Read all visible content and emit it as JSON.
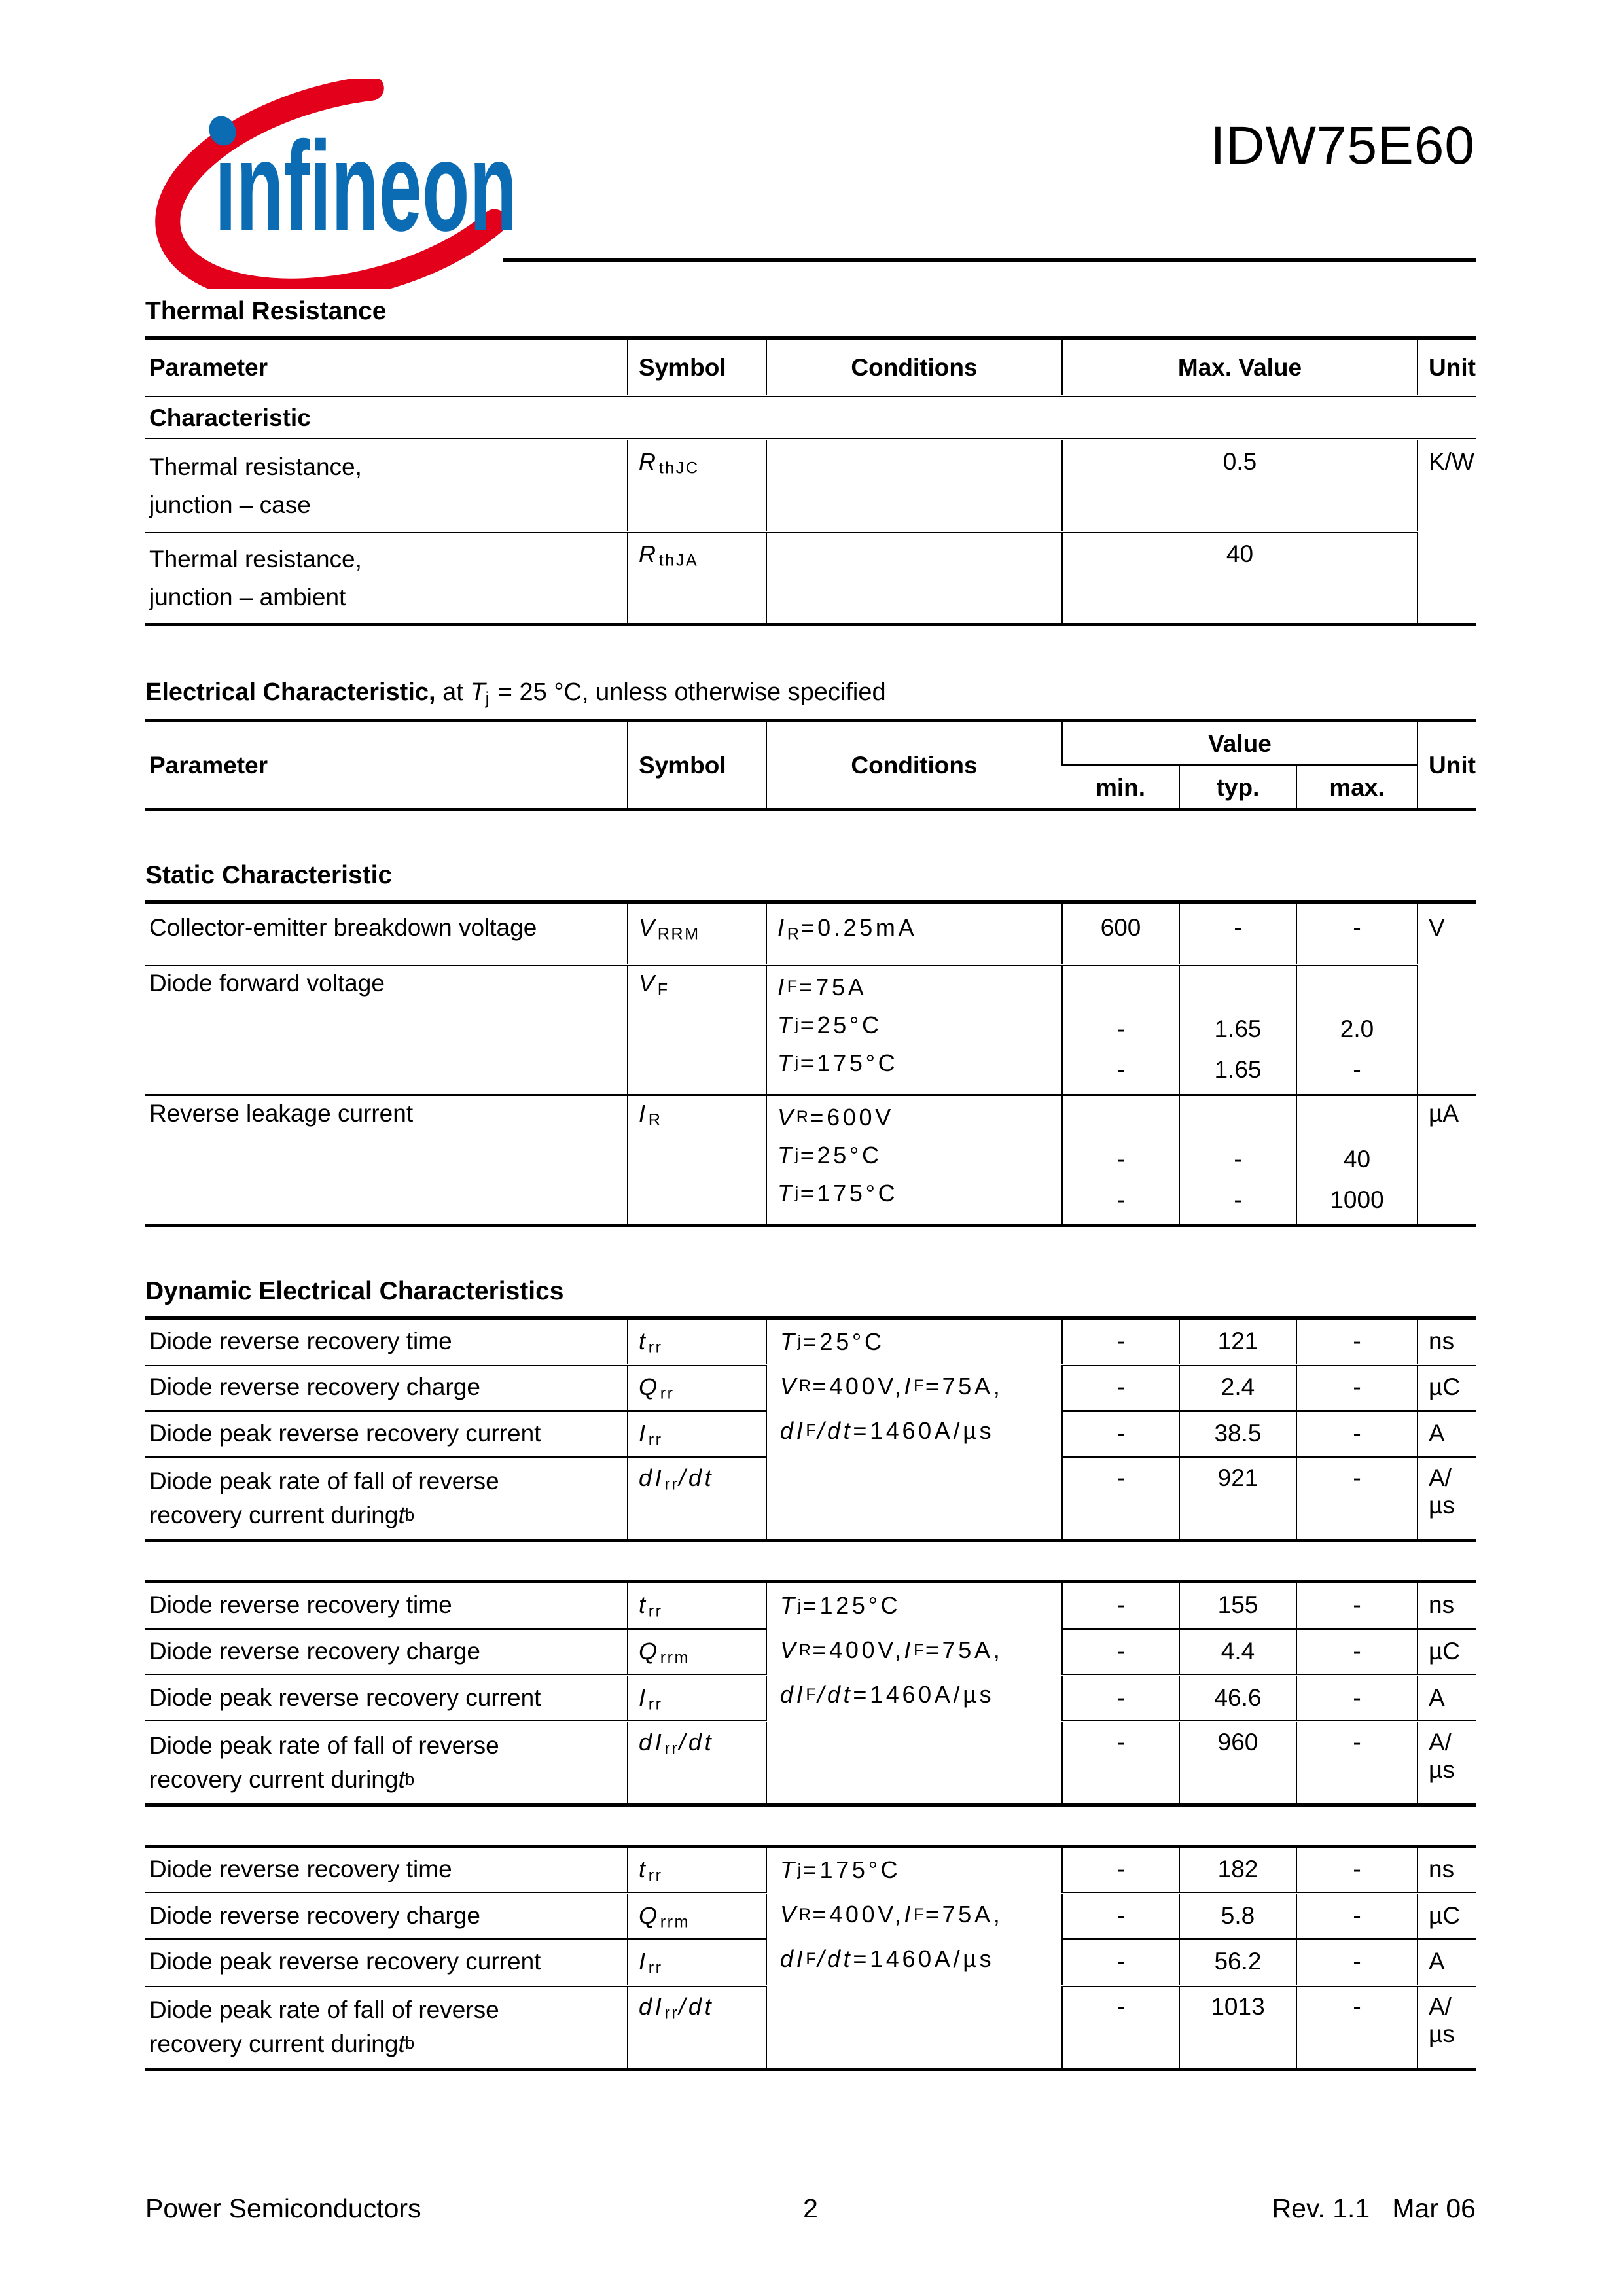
{
  "colors": {
    "logo_red": "#E2001A",
    "logo_blue": "#0B6CB4",
    "text": "#000000",
    "page_bg": "#ffffff"
  },
  "header": {
    "brand_text": "ınfineon",
    "product": "IDW75E60"
  },
  "thermal": {
    "heading": "Thermal Resistance",
    "col_parameter": "Parameter",
    "col_symbol": "Symbol",
    "col_conditions": "Conditions",
    "col_max_value": "Max. Value",
    "col_unit": "Unit",
    "section": "Characteristic",
    "rows": [
      {
        "p1": "Thermal resistance,",
        "p2": "junction – case",
        "symbol": [
          [
            "i",
            "R"
          ],
          [
            "s",
            "thJC"
          ]
        ],
        "max": "0.5",
        "unit": "K/W"
      },
      {
        "p1": "Thermal resistance,",
        "p2": "junction – ambient",
        "symbol": [
          [
            "i",
            "R"
          ],
          [
            "s",
            "thJA"
          ]
        ],
        "max": "40"
      }
    ]
  },
  "electrical": {
    "heading": [
      [
        "b",
        "Electrical Characteristic,"
      ],
      [
        "n",
        " at "
      ],
      [
        "i",
        "T"
      ],
      [
        "s",
        "j"
      ],
      [
        "n",
        " = 25 °C, unless otherwise specified"
      ]
    ],
    "col_parameter": "Parameter",
    "col_symbol": "Symbol",
    "col_conditions": "Conditions",
    "col_value": "Value",
    "col_min": "min.",
    "col_typ": "typ.",
    "col_max": "max.",
    "col_unit": "Unit"
  },
  "static": {
    "heading": "Static Characteristic",
    "rows": [
      {
        "parameter": "Collector-emitter breakdown voltage",
        "symbol": [
          [
            "i",
            "V"
          ],
          [
            "s",
            "RRM"
          ]
        ],
        "cond": [
          [
            "i",
            "I"
          ],
          [
            "s",
            "R"
          ],
          [
            "n",
            "=0.25mA"
          ]
        ],
        "min": "600",
        "typ": "-",
        "max": "-",
        "unit": "V"
      },
      {
        "parameter": "Diode forward voltage",
        "symbol": [
          [
            "i",
            "V"
          ],
          [
            "s",
            "F"
          ]
        ],
        "cond1": [
          [
            "i",
            "I"
          ],
          [
            "s",
            "F"
          ],
          [
            "n",
            "=75A"
          ]
        ],
        "cond2": [
          [
            "i",
            "T"
          ],
          [
            "s",
            "j"
          ],
          [
            "n",
            "=25°C"
          ]
        ],
        "cond3": [
          [
            "i",
            "T"
          ],
          [
            "s",
            "j"
          ],
          [
            "n",
            "=175°C"
          ]
        ],
        "min2": "-",
        "min3": "-",
        "typ2": "1.65",
        "typ3": "1.65",
        "max2": "2.0",
        "max3": "-"
      },
      {
        "parameter": "Reverse leakage current",
        "symbol": [
          [
            "i",
            "I"
          ],
          [
            "s",
            "R"
          ]
        ],
        "cond1": [
          [
            "i",
            "V"
          ],
          [
            "s",
            "R"
          ],
          [
            "n",
            "=600V"
          ]
        ],
        "cond2": [
          [
            "i",
            "T"
          ],
          [
            "s",
            "j"
          ],
          [
            "n",
            "=25°C"
          ]
        ],
        "cond3": [
          [
            "i",
            "T"
          ],
          [
            "s",
            "j"
          ],
          [
            "n",
            "=175°C"
          ]
        ],
        "min2": "-",
        "min3": "-",
        "typ2": "-",
        "typ3": "-",
        "max2": "40",
        "max3": "1000",
        "unit": "µA"
      }
    ]
  },
  "dynamic": {
    "heading": "Dynamic Electrical Characteristics",
    "tables": [
      {
        "cond1": [
          [
            "i",
            "T"
          ],
          [
            "s",
            "j"
          ],
          [
            "n",
            "=25°C"
          ]
        ],
        "cond2": [
          [
            "i",
            "V"
          ],
          [
            "s",
            "R"
          ],
          [
            "n",
            "=400V, "
          ],
          [
            "i",
            "I"
          ],
          [
            "s",
            "F"
          ],
          [
            "n",
            "=75A,"
          ]
        ],
        "cond3": [
          [
            "i",
            "dI"
          ],
          [
            "s",
            "F"
          ],
          [
            "i",
            "/dt"
          ],
          [
            "n",
            "=1460A/µs"
          ]
        ],
        "rows": [
          {
            "parameter": "Diode reverse recovery time",
            "symbol": [
              [
                "i",
                "t"
              ],
              [
                "s",
                "rr"
              ]
            ],
            "min": "-",
            "typ": "121",
            "max": "-",
            "unit": "ns"
          },
          {
            "parameter": "Diode reverse recovery charge",
            "symbol": [
              [
                "i",
                "Q"
              ],
              [
                "s",
                "rr"
              ]
            ],
            "min": "-",
            "typ": "2.4",
            "max": "-",
            "unit": "µC"
          },
          {
            "parameter": "Diode peak reverse recovery current",
            "symbol": [
              [
                "i",
                "I"
              ],
              [
                "s",
                "rr"
              ]
            ],
            "min": "-",
            "typ": "38.5",
            "max": "-",
            "unit": "A"
          },
          {
            "p1": "Diode peak rate of fall of reverse",
            "p2": [
              [
                "n",
                "recovery current during "
              ],
              [
                "i",
                "t"
              ],
              [
                "s",
                "b"
              ]
            ],
            "symbol": [
              [
                "i",
                "dI"
              ],
              [
                "s",
                "rr"
              ],
              [
                "i",
                "/dt"
              ]
            ],
            "min": "-",
            "typ": "921",
            "max": "-",
            "unit": "A/µs"
          }
        ]
      },
      {
        "cond1": [
          [
            "i",
            "T"
          ],
          [
            "s",
            "j"
          ],
          [
            "n",
            "=125°C"
          ]
        ],
        "cond2": [
          [
            "i",
            "V"
          ],
          [
            "s",
            "R"
          ],
          [
            "n",
            "=400V, "
          ],
          [
            "i",
            "I"
          ],
          [
            "s",
            "F"
          ],
          [
            "n",
            "=75A,"
          ]
        ],
        "cond3": [
          [
            "i",
            "dI"
          ],
          [
            "s",
            "F"
          ],
          [
            "i",
            "/dt"
          ],
          [
            "n",
            "=1460A/µs"
          ]
        ],
        "rows": [
          {
            "parameter": "Diode reverse recovery time",
            "symbol": [
              [
                "i",
                "t"
              ],
              [
                "s",
                "rr"
              ]
            ],
            "min": "-",
            "typ": "155",
            "max": "-",
            "unit": "ns"
          },
          {
            "parameter": "Diode reverse recovery charge",
            "symbol": [
              [
                "i",
                "Q"
              ],
              [
                "s",
                "rrm"
              ]
            ],
            "min": "-",
            "typ": "4.4",
            "max": "-",
            "unit": "µC"
          },
          {
            "parameter": "Diode peak reverse recovery current",
            "symbol": [
              [
                "i",
                "I"
              ],
              [
                "s",
                "rr"
              ]
            ],
            "min": "-",
            "typ": "46.6",
            "max": "-",
            "unit": "A"
          },
          {
            "p1": "Diode peak rate of fall of reverse",
            "p2": [
              [
                "n",
                "recovery current during "
              ],
              [
                "i",
                "t"
              ],
              [
                "s",
                "b"
              ]
            ],
            "symbol": [
              [
                "i",
                "dI"
              ],
              [
                "s",
                "rr"
              ],
              [
                "i",
                "/dt"
              ]
            ],
            "min": "-",
            "typ": "960",
            "max": "-",
            "unit": "A/µs"
          }
        ]
      },
      {
        "cond1": [
          [
            "i",
            "T"
          ],
          [
            "s",
            "j"
          ],
          [
            "n",
            "=175°C"
          ]
        ],
        "cond2": [
          [
            "i",
            "V"
          ],
          [
            "s",
            "R"
          ],
          [
            "n",
            "=400V, "
          ],
          [
            "i",
            "I"
          ],
          [
            "s",
            "F"
          ],
          [
            "n",
            "=75A,"
          ]
        ],
        "cond3": [
          [
            "i",
            "dI"
          ],
          [
            "s",
            "F"
          ],
          [
            "i",
            "/dt"
          ],
          [
            "n",
            "=1460A/µs"
          ]
        ],
        "rows": [
          {
            "parameter": "Diode reverse recovery time",
            "symbol": [
              [
                "i",
                "t"
              ],
              [
                "s",
                "rr"
              ]
            ],
            "min": "-",
            "typ": "182",
            "max": "-",
            "unit": "ns"
          },
          {
            "parameter": "Diode reverse recovery charge",
            "symbol": [
              [
                "i",
                "Q"
              ],
              [
                "s",
                "rrm"
              ]
            ],
            "min": "-",
            "typ": "5.8",
            "max": "-",
            "unit": "µC"
          },
          {
            "parameter": "Diode peak reverse recovery current",
            "symbol": [
              [
                "i",
                "I"
              ],
              [
                "s",
                "rr"
              ]
            ],
            "min": "-",
            "typ": "56.2",
            "max": "-",
            "unit": "A"
          },
          {
            "p1": "Diode peak rate of fall of reverse",
            "p2": [
              [
                "n",
                "recovery current during "
              ],
              [
                "i",
                "t"
              ],
              [
                "s",
                "b"
              ]
            ],
            "symbol": [
              [
                "i",
                "dI"
              ],
              [
                "s",
                "rr"
              ],
              [
                "i",
                "/dt"
              ]
            ],
            "min": "-",
            "typ": "1013",
            "max": "-",
            "unit": "A/µs"
          }
        ]
      }
    ]
  },
  "footer": {
    "left": "Power Semiconductors",
    "page": "2",
    "right": "Rev. 1.1   Mar 06"
  }
}
